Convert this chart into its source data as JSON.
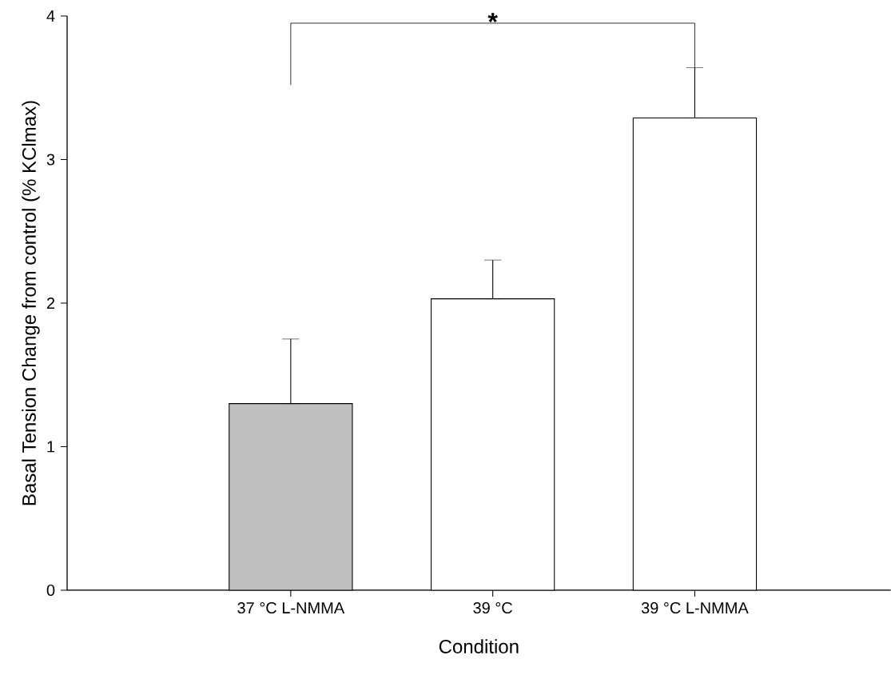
{
  "chart_data": {
    "type": "bar",
    "categories": [
      "37 °C L-NMMA",
      "39 °C",
      "39 °C L-NMMA"
    ],
    "values": [
      1.3,
      2.03,
      3.29
    ],
    "errors": [
      [
        1.3,
        1.75
      ],
      [
        2.03,
        2.3
      ],
      [
        3.29,
        3.64
      ]
    ],
    "colors": [
      "#c0c0c0",
      "#ffffff",
      "#ffffff"
    ],
    "xlabel": "Condition",
    "ylabel": "Basal Tension Change from control (% KClmax)",
    "ylim": [
      0,
      4
    ],
    "yticks": [
      0,
      1,
      2,
      3,
      4
    ],
    "annotations": [
      "*"
    ],
    "grid": false
  }
}
